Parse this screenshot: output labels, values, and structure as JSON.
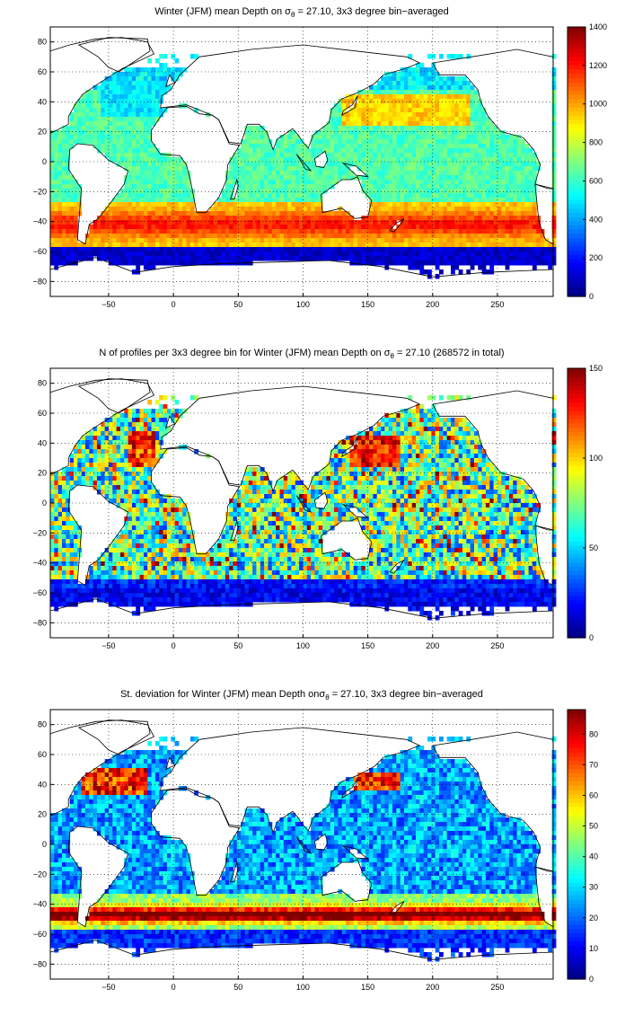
{
  "chart_data": [
    {
      "type": "heatmap",
      "title": {
        "pre": "Winter (JFM) mean Depth on σ",
        "sub": "θ",
        "post": " = 27.10, 3x3 degree bin−averaged"
      },
      "xticks": [
        -50,
        0,
        50,
        100,
        150,
        200,
        250
      ],
      "yticks": [
        80,
        60,
        40,
        20,
        0,
        -20,
        -40,
        -60,
        -80
      ],
      "xlim": [
        -95,
        293
      ],
      "ylim": [
        -90,
        90
      ],
      "grid": true,
      "colorbar": {
        "min": 0,
        "max": 1400,
        "ticks": [
          0,
          200,
          400,
          600,
          800,
          1000,
          1200,
          1400
        ]
      },
      "field": "depth"
    },
    {
      "type": "heatmap",
      "title": {
        "pre": "N of profiles per 3x3 degree bin for Winter (JFM) mean Depth on σ",
        "sub": "θ",
        "post": " = 27.10 (268572 in total)"
      },
      "xticks": [
        -50,
        0,
        50,
        100,
        150,
        200,
        250
      ],
      "yticks": [
        80,
        60,
        40,
        20,
        0,
        -20,
        -40,
        -60,
        -80
      ],
      "xlim": [
        -95,
        293
      ],
      "ylim": [
        -90,
        90
      ],
      "grid": true,
      "colorbar": {
        "min": 0,
        "max": 150,
        "ticks": [
          0,
          50,
          100,
          150
        ]
      },
      "field": "count"
    },
    {
      "type": "heatmap",
      "title": {
        "pre": "St. deviation for Winter (JFM) mean Depth onσ",
        "sub": "θ",
        "post": " = 27.10, 3x3 degree bin−averaged"
      },
      "xticks": [
        -50,
        0,
        50,
        100,
        150,
        200,
        250
      ],
      "yticks": [
        80,
        60,
        40,
        20,
        0,
        -20,
        -40,
        -60,
        -80
      ],
      "xlim": [
        -95,
        293
      ],
      "ylim": [
        -90,
        90
      ],
      "grid": true,
      "colorbar": {
        "min": 0,
        "max": 88,
        "ticks": [
          0,
          10,
          20,
          30,
          40,
          50,
          60,
          70,
          80
        ]
      },
      "field": "std"
    }
  ]
}
